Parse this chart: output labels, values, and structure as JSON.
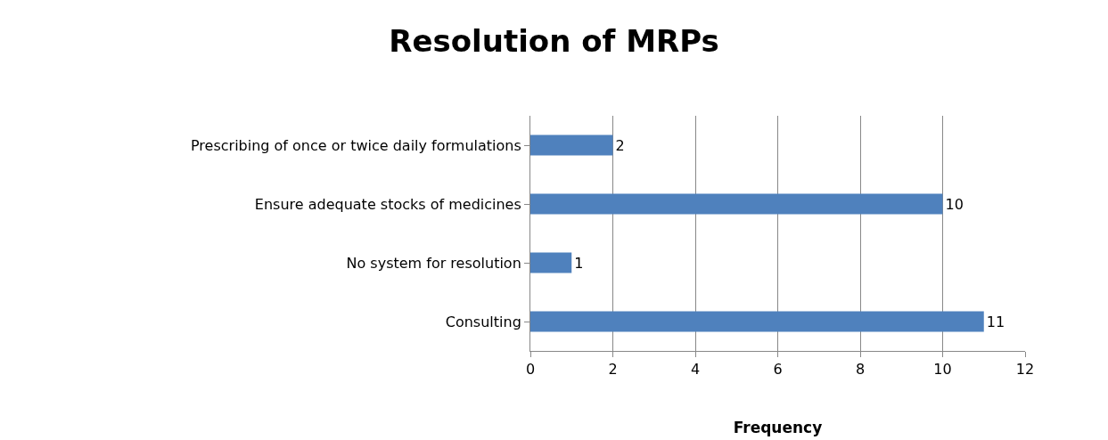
{
  "chart_data": {
    "type": "bar",
    "orientation": "horizontal",
    "title": "Resolution of MRPs",
    "xlabel": "Frequency",
    "categories": [
      "Prescribing of once or twice daily formulations",
      "Ensure adequate stocks of medicines",
      "No system for resolution",
      "Consulting"
    ],
    "values": [
      2,
      10,
      1,
      11
    ],
    "color": "#4f81bd",
    "xlim": [
      0,
      12
    ],
    "xticks": [
      0,
      2,
      4,
      6,
      8,
      10,
      12
    ],
    "grid": "x",
    "data_labels": true
  }
}
